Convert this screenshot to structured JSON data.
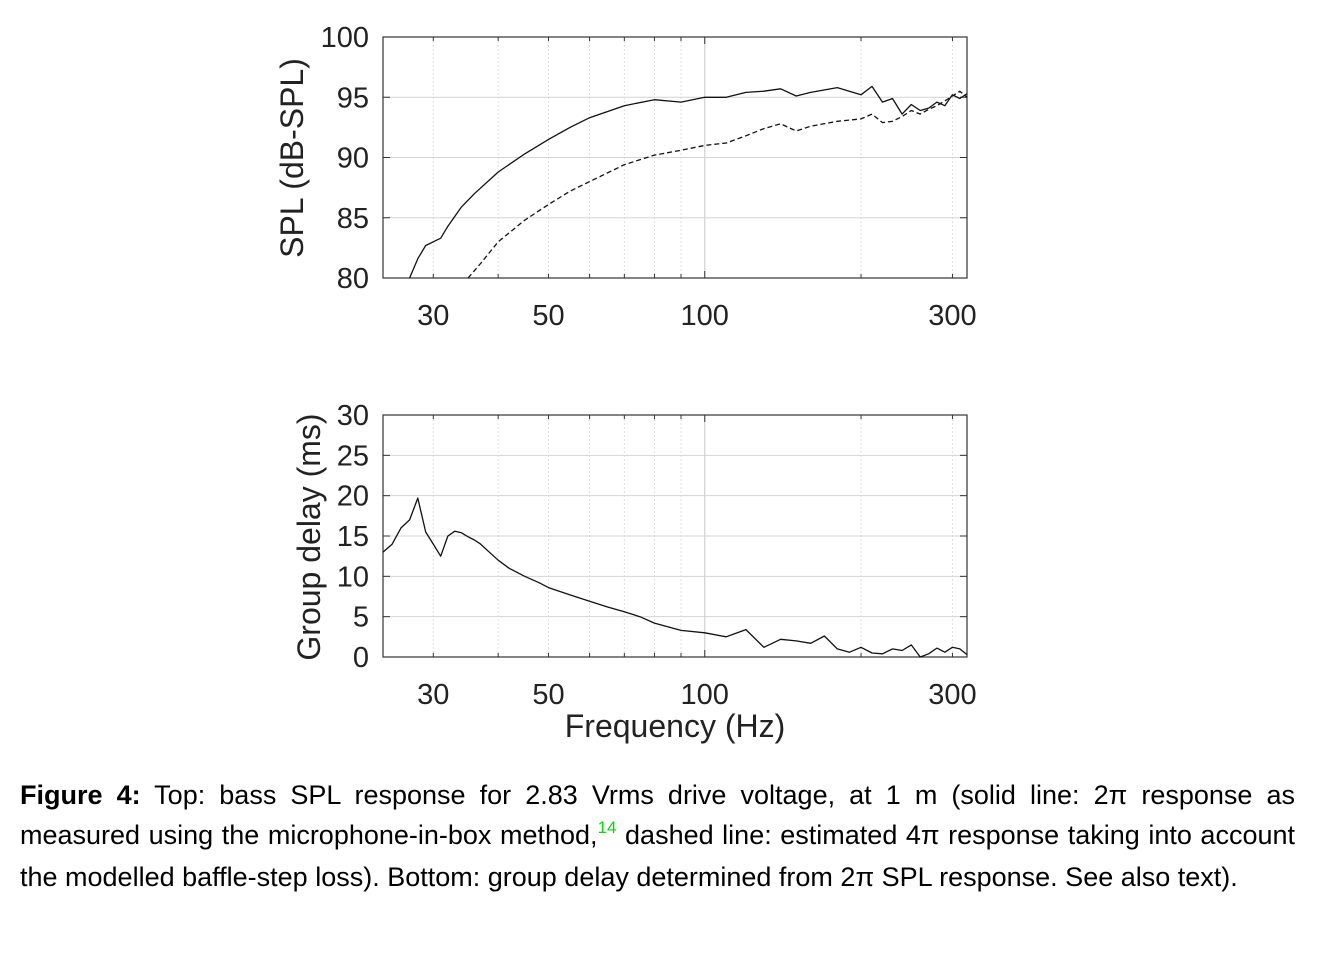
{
  "chart_data": [
    {
      "type": "line",
      "x_scale": "log",
      "xlim": [
        24,
        320
      ],
      "ylim": [
        80,
        100
      ],
      "yticks": [
        80,
        85,
        90,
        95,
        100
      ],
      "xticks": [
        30,
        50,
        100,
        300
      ],
      "xlabel": "",
      "ylabel": "SPL (dB-SPL)",
      "grid": true,
      "series": [
        {
          "style": "solid",
          "x": [
            27,
            28,
            29,
            30,
            31,
            32,
            34,
            36,
            40,
            45,
            50,
            55,
            60,
            70,
            80,
            90,
            100,
            110,
            120,
            130,
            140,
            150,
            160,
            180,
            200,
            210,
            220,
            230,
            240,
            250,
            260,
            270,
            280,
            290,
            300,
            310,
            320
          ],
          "y": [
            80,
            81.6,
            82.7,
            83.0,
            83.3,
            84.3,
            85.9,
            87.0,
            88.8,
            90.3,
            91.5,
            92.5,
            93.3,
            94.3,
            94.8,
            94.6,
            95.0,
            95.0,
            95.4,
            95.5,
            95.7,
            95.1,
            95.4,
            95.8,
            95.2,
            95.9,
            94.6,
            94.9,
            93.6,
            94.4,
            93.9,
            94.1,
            94.6,
            94.3,
            95.2,
            94.9,
            95.3
          ]
        },
        {
          "style": "dashed",
          "x": [
            35,
            37,
            40,
            45,
            50,
            55,
            60,
            70,
            80,
            90,
            100,
            110,
            120,
            130,
            140,
            150,
            160,
            180,
            200,
            210,
            220,
            230,
            240,
            250,
            260,
            270,
            280,
            290,
            300,
            310,
            320
          ],
          "y": [
            80,
            81.2,
            83.0,
            84.8,
            86.1,
            87.2,
            88.0,
            89.4,
            90.2,
            90.6,
            91.0,
            91.2,
            91.8,
            92.4,
            92.8,
            92.2,
            92.6,
            93.0,
            93.2,
            93.6,
            92.9,
            93.0,
            93.4,
            93.9,
            93.6,
            94.0,
            94.3,
            94.7,
            95.1,
            95.5,
            95.0
          ]
        }
      ]
    },
    {
      "type": "line",
      "x_scale": "log",
      "xlim": [
        24,
        320
      ],
      "ylim": [
        0,
        30
      ],
      "yticks": [
        0,
        5,
        10,
        15,
        20,
        25,
        30
      ],
      "xticks": [
        30,
        50,
        100,
        300
      ],
      "xlabel": "Frequency (Hz)",
      "ylabel": "Group delay (ms)",
      "grid": true,
      "series": [
        {
          "style": "solid",
          "x": [
            24,
            25,
            26,
            27,
            28,
            29,
            30,
            31,
            32,
            33,
            34,
            35,
            36,
            37,
            38,
            40,
            42,
            45,
            48,
            50,
            55,
            60,
            65,
            70,
            75,
            80,
            90,
            100,
            110,
            120,
            130,
            140,
            150,
            160,
            170,
            180,
            190,
            200,
            210,
            220,
            230,
            240,
            250,
            260,
            270,
            280,
            290,
            300,
            310,
            320
          ],
          "y": [
            13,
            14,
            16,
            17,
            19.7,
            15.5,
            14,
            12.5,
            15,
            15.6,
            15.4,
            14.9,
            14.5,
            14.0,
            13.3,
            12,
            11,
            10,
            9.2,
            8.6,
            7.7,
            6.9,
            6.2,
            5.6,
            5.0,
            4.2,
            3.3,
            3.0,
            2.5,
            3.4,
            1.2,
            2.2,
            2.0,
            1.7,
            2.6,
            1.0,
            0.6,
            1.2,
            0.5,
            0.4,
            1.0,
            0.8,
            1.5,
            0.0,
            0.4,
            1.1,
            0.6,
            1.2,
            1.0,
            0.3
          ]
        }
      ]
    }
  ],
  "axes": {
    "top": {
      "ylabel": "SPL (dB-SPL)",
      "yticklabels": [
        "80",
        "85",
        "90",
        "95",
        "100"
      ],
      "xticklabels": [
        "30",
        "50",
        "100",
        "300"
      ]
    },
    "bottom": {
      "ylabel": "Group delay (ms)",
      "xlabel": "Frequency (Hz)",
      "yticklabels": [
        "0",
        "5",
        "10",
        "15",
        "20",
        "25",
        "30"
      ],
      "xticklabels": [
        "30",
        "50",
        "100",
        "300"
      ]
    }
  },
  "caption": {
    "label": "Figure 4:",
    "text_before_ref": " Top: bass SPL response for 2.83 Vrms drive voltage, at 1 m (solid line: 2π response as measured using the microphone-in-box method,",
    "ref": "14",
    "text_after_ref": " dashed line: estimated 4π response taking into account the modelled baffle-step loss).  Bottom: group delay determined from 2π SPL response. See also text).",
    "ref_color": "#00dd00"
  }
}
